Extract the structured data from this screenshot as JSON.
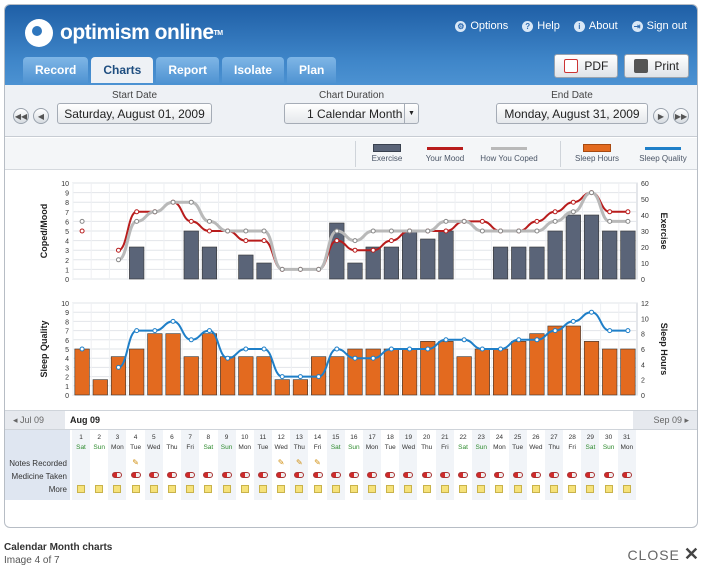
{
  "app": {
    "logo_text": "optimism online",
    "trademark": "TM"
  },
  "topnav": [
    {
      "label": "Options",
      "icon": "gear-icon"
    },
    {
      "label": "Help",
      "icon": "help-icon"
    },
    {
      "label": "About",
      "icon": "info-icon"
    },
    {
      "label": "Sign out",
      "icon": "signout-icon"
    }
  ],
  "tabs": [
    {
      "label": "Record",
      "active": false
    },
    {
      "label": "Charts",
      "active": true
    },
    {
      "label": "Report",
      "active": false
    },
    {
      "label": "Isolate",
      "active": false
    },
    {
      "label": "Plan",
      "active": false
    }
  ],
  "actions": {
    "pdf_label": "PDF",
    "print_label": "Print"
  },
  "toolbar": {
    "start_label": "Start Date",
    "start_value": "Saturday, August 01, 2009",
    "duration_label": "Chart Duration",
    "duration_value": "1 Calendar Month",
    "end_label": "End Date",
    "end_value": "Monday, August 31, 2009"
  },
  "legend": [
    {
      "label": "Exercise",
      "kind": "bar",
      "color": "#5a6478"
    },
    {
      "label": "Your Mood",
      "kind": "line",
      "color": "#b81c1c"
    },
    {
      "label": "How You Coped",
      "kind": "line",
      "color": "#b9b9b9"
    },
    {
      "label": "Sleep Hours",
      "kind": "bar",
      "color": "#e36a1f"
    },
    {
      "label": "Sleep Quality",
      "kind": "line",
      "color": "#1f7fc8"
    }
  ],
  "chart_data": [
    {
      "type": "bar",
      "ylabel": "Coped/Mood",
      "y2label": "Exercise",
      "ylim": [
        0,
        10
      ],
      "y2lim": [
        0,
        60
      ],
      "yticks": [
        "0",
        "1",
        "2",
        "3",
        "4",
        "5",
        "6",
        "7",
        "8",
        "9",
        "10"
      ],
      "y2ticks": [
        "0",
        "10",
        "20",
        "30",
        "40",
        "50",
        "60"
      ],
      "grid": true,
      "x": [
        1,
        2,
        3,
        4,
        5,
        6,
        7,
        8,
        9,
        10,
        11,
        12,
        13,
        14,
        15,
        16,
        17,
        18,
        19,
        20,
        21,
        22,
        23,
        24,
        25,
        26,
        27,
        28,
        29,
        30,
        31
      ],
      "series": [
        {
          "name": "Exercise",
          "axis": "right",
          "values": [
            0,
            0,
            0,
            20,
            0,
            0,
            30,
            20,
            0,
            15,
            10,
            0,
            0,
            0,
            35,
            10,
            20,
            20,
            30,
            25,
            30,
            0,
            0,
            20,
            20,
            20,
            30,
            40,
            40,
            30,
            30
          ]
        },
        {
          "name": "Your Mood",
          "axis": "left",
          "values": [
            5,
            null,
            3,
            7,
            7,
            8,
            6,
            5,
            5,
            4,
            4,
            1,
            1,
            1,
            4,
            3,
            3,
            4,
            5,
            5,
            5,
            6,
            6,
            5,
            5,
            6,
            7,
            8,
            9,
            7,
            7
          ]
        },
        {
          "name": "How You Coped",
          "axis": "left",
          "values": [
            6,
            null,
            2,
            6,
            7,
            8,
            8,
            6,
            5,
            5,
            5,
            1,
            1,
            1,
            5,
            4,
            5,
            5,
            5,
            5,
            6,
            6,
            5,
            5,
            5,
            5,
            6,
            7,
            9,
            6,
            6
          ]
        }
      ]
    },
    {
      "type": "bar",
      "ylabel": "Sleep Quality",
      "y2label": "Sleep Hours",
      "ylim": [
        0,
        10
      ],
      "y2lim": [
        0,
        12
      ],
      "yticks": [
        "0",
        "1",
        "2",
        "3",
        "4",
        "5",
        "6",
        "7",
        "8",
        "9",
        "10"
      ],
      "y2ticks": [
        "0",
        "2",
        "4",
        "6",
        "8",
        "10",
        "12"
      ],
      "grid": true,
      "x": [
        1,
        2,
        3,
        4,
        5,
        6,
        7,
        8,
        9,
        10,
        11,
        12,
        13,
        14,
        15,
        16,
        17,
        18,
        19,
        20,
        21,
        22,
        23,
        24,
        25,
        26,
        27,
        28,
        29,
        30,
        31
      ],
      "series": [
        {
          "name": "Sleep Hours",
          "axis": "right",
          "values": [
            6,
            2,
            5,
            6,
            8,
            8,
            5,
            8,
            5,
            5,
            5,
            2,
            2,
            5,
            5,
            6,
            6,
            6,
            6,
            7,
            7,
            5,
            6,
            6,
            7,
            8,
            9,
            9,
            7,
            6,
            6
          ]
        },
        {
          "name": "Sleep Quality",
          "axis": "left",
          "values": [
            5,
            null,
            3,
            7,
            7,
            8,
            6,
            7,
            4,
            5,
            5,
            2,
            2,
            2,
            5,
            4,
            4,
            5,
            5,
            5,
            6,
            6,
            5,
            5,
            6,
            6,
            7,
            8,
            9,
            7,
            7
          ]
        }
      ]
    }
  ],
  "month_nav": {
    "prev": "Jul 09",
    "current": "Aug 09",
    "next": "Sep 09"
  },
  "row_labels": [
    "Notes Recorded",
    "Medicine Taken",
    "More"
  ],
  "days": [
    {
      "n": "1",
      "w": "Sat"
    },
    {
      "n": "2",
      "w": "Sun"
    },
    {
      "n": "3",
      "w": "Mon"
    },
    {
      "n": "4",
      "w": "Tue"
    },
    {
      "n": "5",
      "w": "Wed"
    },
    {
      "n": "6",
      "w": "Thu"
    },
    {
      "n": "7",
      "w": "Fri"
    },
    {
      "n": "8",
      "w": "Sat"
    },
    {
      "n": "9",
      "w": "Sun"
    },
    {
      "n": "10",
      "w": "Mon"
    },
    {
      "n": "11",
      "w": "Tue"
    },
    {
      "n": "12",
      "w": "Wed"
    },
    {
      "n": "13",
      "w": "Thu"
    },
    {
      "n": "14",
      "w": "Fri"
    },
    {
      "n": "15",
      "w": "Sat"
    },
    {
      "n": "16",
      "w": "Sun"
    },
    {
      "n": "17",
      "w": "Mon"
    },
    {
      "n": "18",
      "w": "Tue"
    },
    {
      "n": "19",
      "w": "Wed"
    },
    {
      "n": "20",
      "w": "Thu"
    },
    {
      "n": "21",
      "w": "Fri"
    },
    {
      "n": "22",
      "w": "Sat"
    },
    {
      "n": "23",
      "w": "Sun"
    },
    {
      "n": "24",
      "w": "Mon"
    },
    {
      "n": "25",
      "w": "Tue"
    },
    {
      "n": "26",
      "w": "Wed"
    },
    {
      "n": "27",
      "w": "Thu"
    },
    {
      "n": "28",
      "w": "Fri"
    },
    {
      "n": "29",
      "w": "Sat"
    },
    {
      "n": "30",
      "w": "Sun"
    },
    {
      "n": "31",
      "w": "Mon"
    }
  ],
  "notes_days": [
    4,
    12,
    13,
    14
  ],
  "medicine_days": [
    3,
    4,
    5,
    6,
    7,
    8,
    9,
    10,
    11,
    12,
    13,
    14,
    15,
    16,
    17,
    18,
    19,
    20,
    21,
    22,
    23,
    24,
    25,
    26,
    27,
    28,
    29,
    30,
    31
  ],
  "footer": {
    "caption": "Calendar Month charts",
    "counter": "Image 4 of 7",
    "close_label": "CLOSE"
  }
}
